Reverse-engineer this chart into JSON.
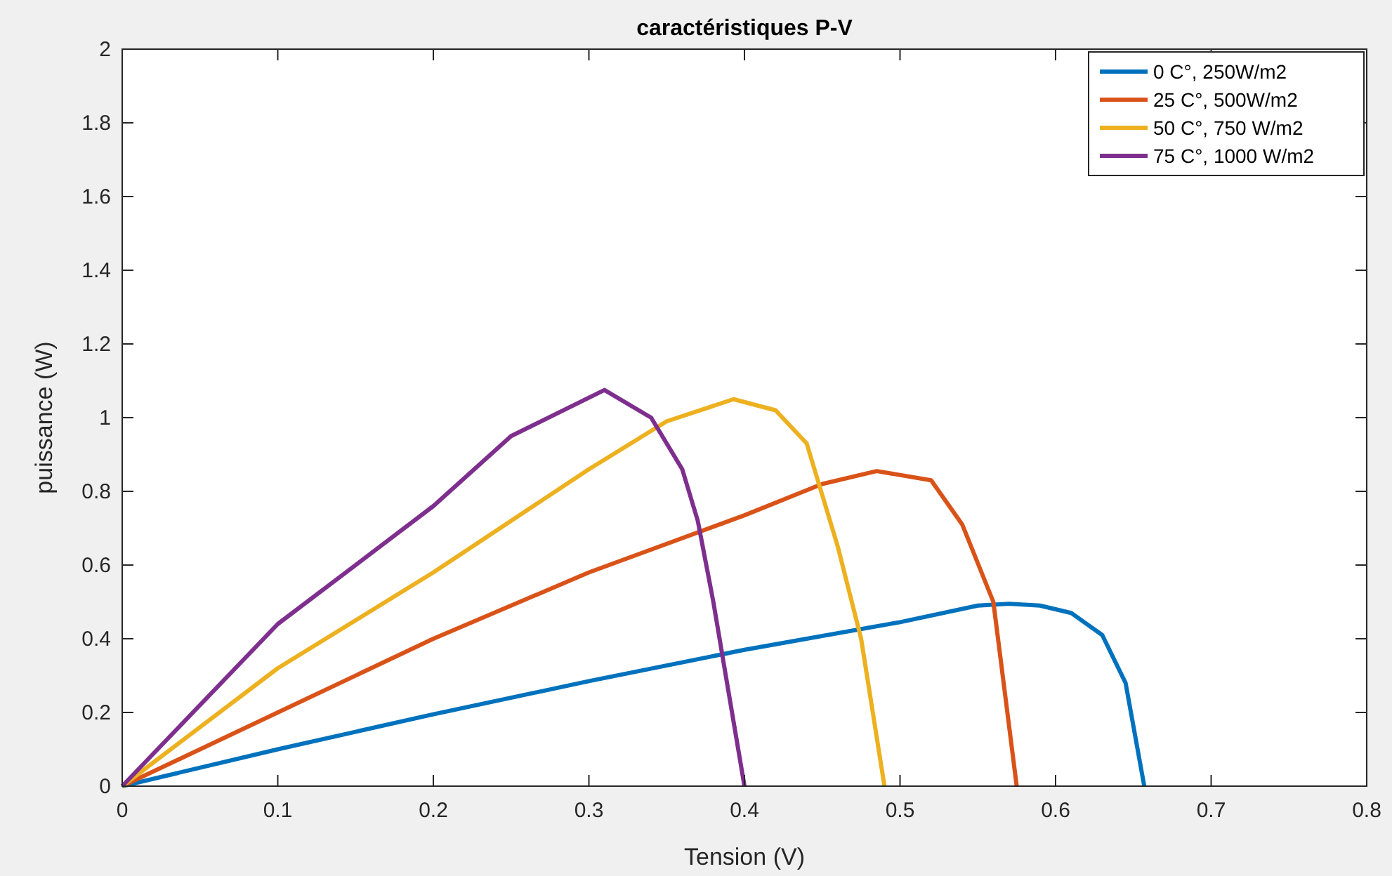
{
  "chart_data": {
    "type": "line",
    "title": "caractéristiques P-V",
    "xlabel": "Tension (V)",
    "ylabel": "puissance (W)",
    "xlim": [
      0,
      0.8
    ],
    "ylim": [
      0,
      2
    ],
    "xticks": [
      0,
      0.1,
      0.2,
      0.3,
      0.4,
      0.5,
      0.6,
      0.7,
      0.8
    ],
    "yticks": [
      0,
      0.2,
      0.4,
      0.6,
      0.8,
      1,
      1.2,
      1.4,
      1.6,
      1.8,
      2
    ],
    "grid": false,
    "legend": "top right",
    "series": [
      {
        "name": "0 C°, 250W/m2",
        "color": "#0072bd",
        "x": [
          0,
          0.1,
          0.2,
          0.3,
          0.4,
          0.5,
          0.55,
          0.57,
          0.59,
          0.61,
          0.63,
          0.645,
          0.657
        ],
        "values": [
          0,
          0.1,
          0.195,
          0.285,
          0.37,
          0.445,
          0.49,
          0.495,
          0.49,
          0.47,
          0.41,
          0.28,
          0
        ]
      },
      {
        "name": "25 C°, 500W/m2",
        "color": "#d95319",
        "x": [
          0,
          0.1,
          0.2,
          0.3,
          0.4,
          0.45,
          0.485,
          0.52,
          0.54,
          0.56,
          0.575
        ],
        "values": [
          0,
          0.2,
          0.4,
          0.58,
          0.735,
          0.82,
          0.855,
          0.83,
          0.71,
          0.5,
          0
        ]
      },
      {
        "name": "50 C°, 750 W/m2",
        "color": "#edb120",
        "x": [
          0,
          0.1,
          0.2,
          0.3,
          0.35,
          0.393,
          0.42,
          0.44,
          0.46,
          0.475,
          0.49
        ],
        "values": [
          0,
          0.32,
          0.58,
          0.86,
          0.99,
          1.05,
          1.02,
          0.93,
          0.65,
          0.4,
          0
        ]
      },
      {
        "name": "75 C°, 1000 W/m2",
        "color": "#7e2f8e",
        "x": [
          0,
          0.1,
          0.2,
          0.25,
          0.31,
          0.34,
          0.36,
          0.37,
          0.38,
          0.39,
          0.4
        ],
        "values": [
          0,
          0.44,
          0.76,
          0.95,
          1.075,
          1.0,
          0.86,
          0.72,
          0.5,
          0.25,
          0
        ]
      }
    ]
  }
}
